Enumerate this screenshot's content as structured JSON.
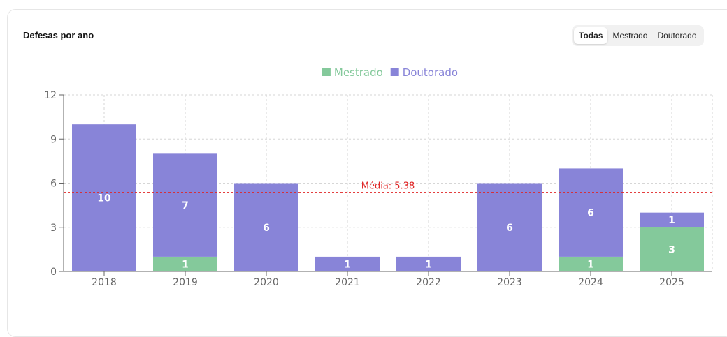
{
  "card": {
    "title": "Defesas por ano",
    "filters": [
      {
        "label": "Todas",
        "active": true
      },
      {
        "label": "Mestrado",
        "active": false
      },
      {
        "label": "Doutorado",
        "active": false
      }
    ]
  },
  "chart_data": {
    "type": "bar",
    "stacked": true,
    "categories": [
      "2018",
      "2019",
      "2020",
      "2021",
      "2022",
      "2023",
      "2024",
      "2025"
    ],
    "series": [
      {
        "name": "Mestrado",
        "color": "#84c99b",
        "values": [
          0,
          1,
          0,
          0,
          0,
          0,
          1,
          3
        ]
      },
      {
        "name": "Doutorado",
        "color": "#8884d8",
        "values": [
          10,
          7,
          6,
          1,
          1,
          6,
          6,
          1
        ]
      }
    ],
    "ylim": [
      0,
      12
    ],
    "yticks": [
      "0",
      "3",
      "6",
      "9",
      "12"
    ],
    "grid": true,
    "legend_position": "top",
    "reference_line": {
      "value": 5.38,
      "label": "Média: 5.38",
      "color": "#e02424"
    }
  }
}
